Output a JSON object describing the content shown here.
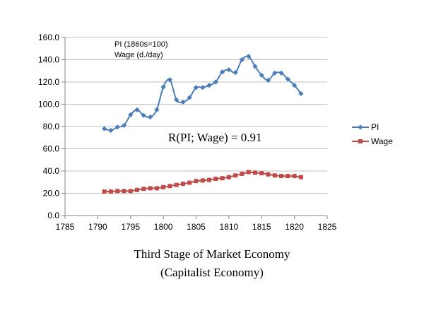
{
  "chart_data": {
    "type": "line",
    "x": [
      1791,
      1792,
      1793,
      1794,
      1795,
      1796,
      1797,
      1798,
      1799,
      1800,
      1801,
      1802,
      1803,
      1804,
      1805,
      1806,
      1807,
      1808,
      1809,
      1810,
      1811,
      1812,
      1813,
      1814,
      1815,
      1816,
      1817,
      1818,
      1819,
      1820,
      1821
    ],
    "series": [
      {
        "name": "PI",
        "color": "#4a7ebb",
        "marker": "diamond",
        "values": [
          78,
          76.5,
          79.5,
          81,
          90.5,
          95,
          90,
          88.5,
          95,
          115.5,
          122,
          104,
          102,
          106,
          115,
          115,
          117,
          120,
          129,
          131,
          128.5,
          140,
          143,
          134,
          126,
          121.5,
          128,
          128,
          122.5,
          117,
          109.5
        ]
      },
      {
        "name": "Wage",
        "color": "#be4b48",
        "marker": "square",
        "values": [
          21.5,
          21.5,
          22,
          22,
          22,
          23,
          24,
          24.5,
          24.5,
          25.5,
          26.5,
          27.5,
          28.5,
          29.5,
          31,
          31.5,
          32,
          33,
          33.5,
          34.5,
          36,
          37.5,
          39,
          38.5,
          38,
          37,
          36,
          35.5,
          35.5,
          35.5,
          34.5
        ]
      }
    ],
    "xlim": [
      1785,
      1825
    ],
    "xticks": [
      "1785",
      "1790",
      "1795",
      "1800",
      "1805",
      "1810",
      "1815",
      "1820",
      "1825"
    ],
    "ylim": [
      0,
      160
    ],
    "yticks": [
      "0.0",
      "20.0",
      "40.0",
      "60.0",
      "80.0",
      "100.0",
      "120.0",
      "140.0",
      "160.0"
    ],
    "grid": "horizontal",
    "legend": "right",
    "annotations": {
      "units_line1": "PI (1860s=100)",
      "units_line2": "Wage (d./day)",
      "correlation": "R(PI; Wage) = 0.91"
    }
  },
  "caption": {
    "line1": "Third Stage of Market Economy",
    "line2": "(Capitalist Economy)"
  }
}
